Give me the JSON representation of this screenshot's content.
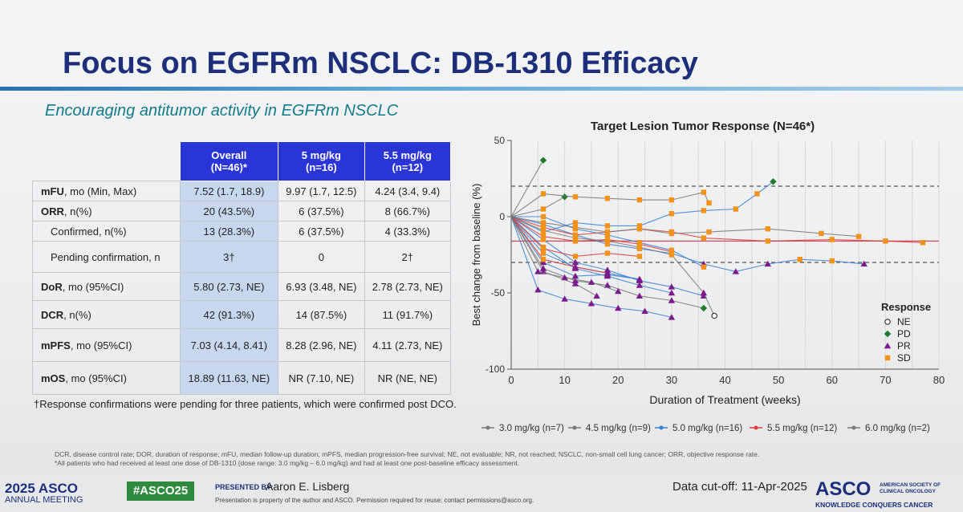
{
  "title": "Focus on EGFRm NSCLC: DB-1310 Efficacy",
  "subtitle": "Encouraging antitumor activity in EGFRm NSCLC",
  "table": {
    "headers": [
      "Overall (N=46)*",
      "5 mg/kg (n=16)",
      "5.5 mg/kg (n=12)"
    ],
    "header_lines": [
      [
        "Overall",
        "(N=46)*"
      ],
      [
        "5 mg/kg",
        "(n=16)"
      ],
      [
        "5.5 mg/kg",
        "(n=12)"
      ]
    ],
    "rows": [
      {
        "bold": "mFU",
        "rest": ", mo (Min, Max)",
        "values": [
          "7.52 (1.7, 18.9)",
          "9.97 (1.7, 12.5)",
          "4.24 (3.4, 9.4)"
        ]
      },
      {
        "bold": "ORR",
        "rest": ", n(%)",
        "values": [
          "20 (43.5%)",
          "6 (37.5%)",
          "8 (66.7%)"
        ]
      },
      {
        "bold": "",
        "rest": "Confirmed, n(%)",
        "values": [
          "13 (28.3%)",
          "6 (37.5%)",
          "4 (33.3%)"
        ]
      },
      {
        "bold": "",
        "rest": "Pending confirmation, n",
        "values": [
          "3†",
          "0",
          "2†"
        ]
      },
      {
        "bold": "DoR",
        "rest": ", mo (95%CI)",
        "values": [
          "5.80 (2.73, NE)",
          "6.93 (3.48, NE)",
          "2.78 (2.73, NE)"
        ]
      },
      {
        "bold": "DCR",
        "rest": ", n(%)",
        "values": [
          "42 (91.3%)",
          "14 (87.5%)",
          "11 (91.7%)"
        ]
      },
      {
        "bold": "mPFS",
        "rest": ", mo (95%CI)",
        "values": [
          "7.03 (4.14, 8.41)",
          "8.28 (2.96, NE)",
          "4.11 (2.73, NE)"
        ]
      },
      {
        "bold": "mOS",
        "rest": ", mo (95%CI)",
        "values": [
          "18.89 (11.63, NE)",
          "NR (7.10, NE)",
          "NR (NE, NE)"
        ]
      }
    ]
  },
  "footnote": "†Response confirmations were pending for three patients, which were confirmed post DCO.",
  "abbreviations": "DCR, disease control rate; DOR, duration of response; mFU, median follow-up duration; mPFS, median progression-free survival; NE, not evaluable; NR, not reached; NSCLC, non-small cell lung cancer; ORR, objective response rate.",
  "abbreviations_note": "*All patients who had received at least one dose of DB-1310 (dose range: 3.0 mg/kg – 6.0 mg/kg) and had at least one post-baseline efficacy assessment.",
  "chart_data": {
    "type": "line",
    "title": "Target Lesion Tumor Response (N=46*)",
    "xlabel": "Duration of Treatment (weeks)",
    "ylabel": "Best change from baseline (%)",
    "xlim": [
      0,
      80
    ],
    "ylim": [
      -100,
      50
    ],
    "xticks": [
      0,
      10,
      20,
      30,
      40,
      50,
      60,
      70,
      80
    ],
    "yticks": [
      50,
      0,
      -50,
      -100
    ],
    "reference_lines": [
      {
        "y": 20,
        "style": "dashed",
        "color": "#555555"
      },
      {
        "y": -30,
        "style": "dashed",
        "color": "#555555"
      },
      {
        "y": -16,
        "style": "solid",
        "color": "#d9475a"
      }
    ],
    "legend_response": {
      "title": "Response",
      "items": [
        {
          "label": "NE",
          "shape": "circle-open",
          "color": "#333333"
        },
        {
          "label": "PD",
          "shape": "diamond",
          "color": "#1f7a2c"
        },
        {
          "label": "PR",
          "shape": "triangle",
          "color": "#7a1a8c"
        },
        {
          "label": "SD",
          "shape": "square",
          "color": "#f0921c"
        }
      ]
    },
    "legend_dose": [
      {
        "label": "3.0 mg/kg (n=7)",
        "color": "#777777"
      },
      {
        "label": "4.5 mg/kg (n=9)",
        "color": "#777777"
      },
      {
        "label": "5.0 mg/kg (n=16)",
        "color": "#3b7fd0"
      },
      {
        "label": "5.5 mg/kg (n=12)",
        "color": "#e03a3a"
      },
      {
        "label": "6.0 mg/kg (n=2)",
        "color": "#777777"
      }
    ],
    "series": [
      {
        "dose": "5.0",
        "points": [
          [
            0,
            0
          ],
          [
            6,
            -15
          ],
          [
            12,
            -30
          ],
          [
            18,
            -35
          ],
          [
            24,
            -42
          ],
          [
            30,
            -46
          ],
          [
            36,
            -52
          ]
        ],
        "response": "PR"
      },
      {
        "dose": "5.0",
        "points": [
          [
            0,
            0
          ],
          [
            6,
            -20
          ],
          [
            12,
            -34
          ],
          [
            18,
            -39
          ],
          [
            24,
            -45
          ],
          [
            30,
            -50
          ]
        ],
        "response": "PR"
      },
      {
        "dose": "5.0",
        "points": [
          [
            0,
            0
          ],
          [
            6,
            -30
          ],
          [
            12,
            -39
          ],
          [
            18,
            -38
          ],
          [
            24,
            -41
          ]
        ],
        "response": "PR"
      },
      {
        "dose": "5.0",
        "points": [
          [
            0,
            0
          ],
          [
            6,
            -5
          ],
          [
            12,
            -12
          ],
          [
            18,
            -18
          ],
          [
            24,
            -21
          ],
          [
            30,
            -24
          ],
          [
            36,
            -31
          ],
          [
            42,
            -36
          ],
          [
            48,
            -31
          ],
          [
            54,
            -28
          ],
          [
            60,
            -29
          ],
          [
            66,
            -31
          ]
        ],
        "response": "PR"
      },
      {
        "dose": "5.0",
        "points": [
          [
            0,
            0
          ],
          [
            6,
            -10
          ],
          [
            12,
            -4
          ],
          [
            18,
            -6
          ],
          [
            24,
            -6
          ],
          [
            30,
            2
          ],
          [
            36,
            4
          ],
          [
            42,
            5
          ],
          [
            46,
            15
          ],
          [
            49,
            23
          ]
        ],
        "response": "PD"
      },
      {
        "dose": "5.0",
        "points": [
          [
            0,
            0
          ],
          [
            5,
            -48
          ],
          [
            10,
            -54
          ],
          [
            15,
            -57
          ],
          [
            20,
            -60
          ],
          [
            25,
            -62
          ],
          [
            30,
            -66
          ]
        ],
        "response": "PR"
      },
      {
        "dose": "5.0",
        "points": [
          [
            0,
            0
          ],
          [
            6,
            -24
          ],
          [
            12,
            -33
          ],
          [
            18,
            -37
          ],
          [
            24,
            -41
          ]
        ],
        "response": "PR"
      },
      {
        "dose": "5.0",
        "points": [
          [
            0,
            0
          ],
          [
            6,
            0
          ],
          [
            12,
            -8
          ],
          [
            18,
            -12
          ],
          [
            24,
            -17
          ],
          [
            30,
            -22
          ],
          [
            36,
            -33
          ]
        ],
        "response": "SD"
      },
      {
        "dose": "5.5",
        "points": [
          [
            0,
            0
          ],
          [
            6,
            -7
          ],
          [
            12,
            -12
          ],
          [
            18,
            -10
          ],
          [
            24,
            -8
          ],
          [
            30,
            -10
          ],
          [
            36,
            -14
          ],
          [
            48,
            -16
          ],
          [
            60,
            -15
          ],
          [
            70,
            -16
          ],
          [
            77,
            -17
          ]
        ],
        "response": "SD"
      },
      {
        "dose": "5.5",
        "points": [
          [
            0,
            0
          ],
          [
            6,
            -13
          ],
          [
            12,
            -16
          ],
          [
            18,
            -15
          ],
          [
            24,
            -18
          ],
          [
            30,
            -23
          ]
        ],
        "response": "SD"
      },
      {
        "dose": "5.5",
        "points": [
          [
            0,
            0
          ],
          [
            6,
            -21
          ],
          [
            12,
            -26
          ],
          [
            18,
            -24
          ],
          [
            24,
            -26
          ]
        ],
        "response": "SD"
      },
      {
        "dose": "5.5",
        "points": [
          [
            0,
            0
          ],
          [
            6,
            -28
          ],
          [
            12,
            -33
          ],
          [
            18,
            -37
          ]
        ],
        "response": "PR"
      },
      {
        "dose": "3.0",
        "points": [
          [
            0,
            0
          ],
          [
            6,
            -9
          ],
          [
            12,
            -14
          ],
          [
            18,
            -16
          ],
          [
            24,
            -20
          ],
          [
            30,
            -25
          ],
          [
            36,
            -50
          ],
          [
            38,
            -65
          ]
        ],
        "response": "NE"
      },
      {
        "dose": "3.0",
        "points": [
          [
            0,
            0
          ],
          [
            6,
            5
          ],
          [
            10,
            13
          ]
        ],
        "response": "PD"
      },
      {
        "dose": "4.5",
        "points": [
          [
            0,
            0
          ],
          [
            6,
            -4
          ],
          [
            12,
            -7
          ],
          [
            18,
            -10
          ],
          [
            24,
            -8
          ],
          [
            30,
            -11
          ],
          [
            37,
            -10
          ],
          [
            48,
            -8
          ],
          [
            58,
            -11
          ],
          [
            65,
            -13
          ]
        ],
        "response": "SD"
      },
      {
        "dose": "4.5",
        "points": [
          [
            0,
            0
          ],
          [
            6,
            15
          ],
          [
            12,
            13
          ],
          [
            18,
            12
          ],
          [
            24,
            11
          ],
          [
            30,
            11
          ],
          [
            36,
            16
          ],
          [
            37,
            9
          ]
        ],
        "response": "SD"
      },
      {
        "dose": "4.5",
        "points": [
          [
            0,
            0
          ],
          [
            6,
            -36
          ],
          [
            12,
            -44
          ],
          [
            16,
            -52
          ]
        ],
        "response": "PR"
      },
      {
        "dose": "4.5",
        "points": [
          [
            0,
            0
          ],
          [
            6,
            -34
          ],
          [
            12,
            -42
          ],
          [
            18,
            -45
          ],
          [
            24,
            -52
          ],
          [
            30,
            -55
          ],
          [
            36,
            -60
          ]
        ],
        "response": "PD"
      },
      {
        "dose": "6.0",
        "points": [
          [
            0,
            0
          ],
          [
            6,
            37
          ]
        ],
        "response": "PD"
      },
      {
        "dose": "6.0",
        "points": [
          [
            0,
            0
          ],
          [
            5,
            -36
          ],
          [
            10,
            -40
          ],
          [
            15,
            -43
          ],
          [
            20,
            -49
          ]
        ],
        "response": "PR"
      }
    ]
  },
  "footer": {
    "asco_year": "2025 ASCO",
    "asco_meeting": "ANNUAL MEETING",
    "hashtag": "#ASCO25",
    "presented_by": "PRESENTED BY:",
    "presenter": "Aaron E. Lisberg",
    "property": "Presentation is property of the author and ASCO. Permission required for reuse; contact permissions@asco.org.",
    "cutoff": "Data cut-off: 11-Apr-2025",
    "asco_logo": "ASCO",
    "society": "AMERICAN SOCIETY OF CLINICAL ONCOLOGY",
    "knowledge": "KNOWLEDGE CONQUERS CANCER"
  },
  "colors": {
    "title": "#1d2f7a",
    "header_bg": "#2a35d6",
    "overall_col": "#c7d7ee",
    "hashtag_bg": "#2e8b3e"
  }
}
